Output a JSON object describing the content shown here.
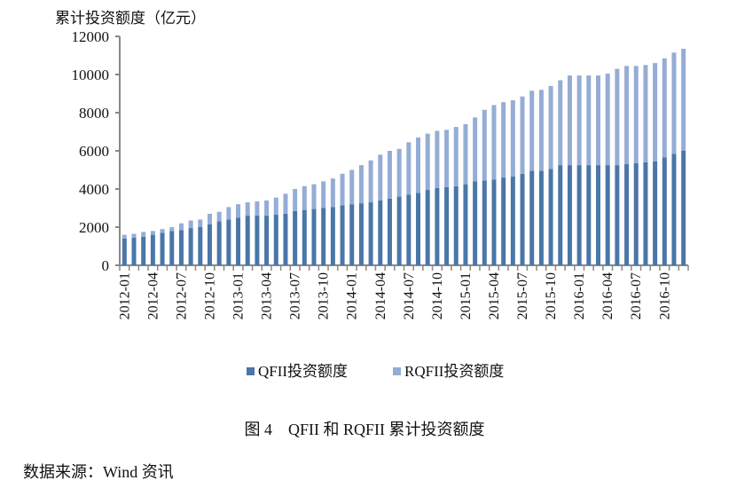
{
  "chart_data": {
    "type": "bar",
    "stacked": true,
    "ylabel": "累计投资额度（亿元）",
    "ylim": [
      0,
      12000
    ],
    "yticks": [
      0,
      2000,
      4000,
      6000,
      8000,
      10000,
      12000
    ],
    "xtick_labels": [
      "2012-01",
      "2012-04",
      "2012-07",
      "2012-10",
      "2013-01",
      "2013-04",
      "2013-07",
      "2013-10",
      "2014-01",
      "2014-04",
      "2014-07",
      "2014-10",
      "2015-01",
      "2015-04",
      "2015-07",
      "2015-10",
      "2016-01",
      "2016-04",
      "2016-07",
      "2016-10"
    ],
    "start_month": "2012-01",
    "legend_position": "bottom",
    "series": [
      {
        "name": "QFII投资额度",
        "color": "#4a76a8",
        "values": [
          1400,
          1450,
          1500,
          1600,
          1700,
          1800,
          1850,
          1950,
          2000,
          2150,
          2300,
          2400,
          2500,
          2600,
          2600,
          2600,
          2650,
          2700,
          2850,
          2900,
          2950,
          3000,
          3050,
          3150,
          3200,
          3250,
          3300,
          3400,
          3500,
          3600,
          3700,
          3800,
          3950,
          4050,
          4100,
          4150,
          4250,
          4400,
          4450,
          4500,
          4600,
          4650,
          4800,
          4950,
          4950,
          5050,
          5250,
          5250,
          5250,
          5250,
          5250,
          5250,
          5250,
          5300,
          5350,
          5400,
          5450,
          5650,
          5850,
          6000
        ]
      },
      {
        "name": "RQFII投资额度",
        "color": "#95add5",
        "values": [
          200,
          200,
          250,
          200,
          200,
          200,
          350,
          400,
          400,
          550,
          500,
          650,
          700,
          700,
          750,
          800,
          900,
          1050,
          1150,
          1250,
          1300,
          1400,
          1500,
          1650,
          1800,
          2000,
          2200,
          2400,
          2500,
          2500,
          2750,
          2900,
          2950,
          3000,
          3000,
          3100,
          3150,
          3350,
          3700,
          3900,
          3950,
          4000,
          4050,
          4200,
          4250,
          4350,
          4450,
          4700,
          4700,
          4700,
          4700,
          4800,
          5050,
          5150,
          5100,
          5100,
          5150,
          5200,
          5300,
          5350
        ]
      }
    ]
  },
  "caption": "图 4　QFII 和 RQFII 累计投资额度",
  "source": "数据来源：Wind 资讯"
}
